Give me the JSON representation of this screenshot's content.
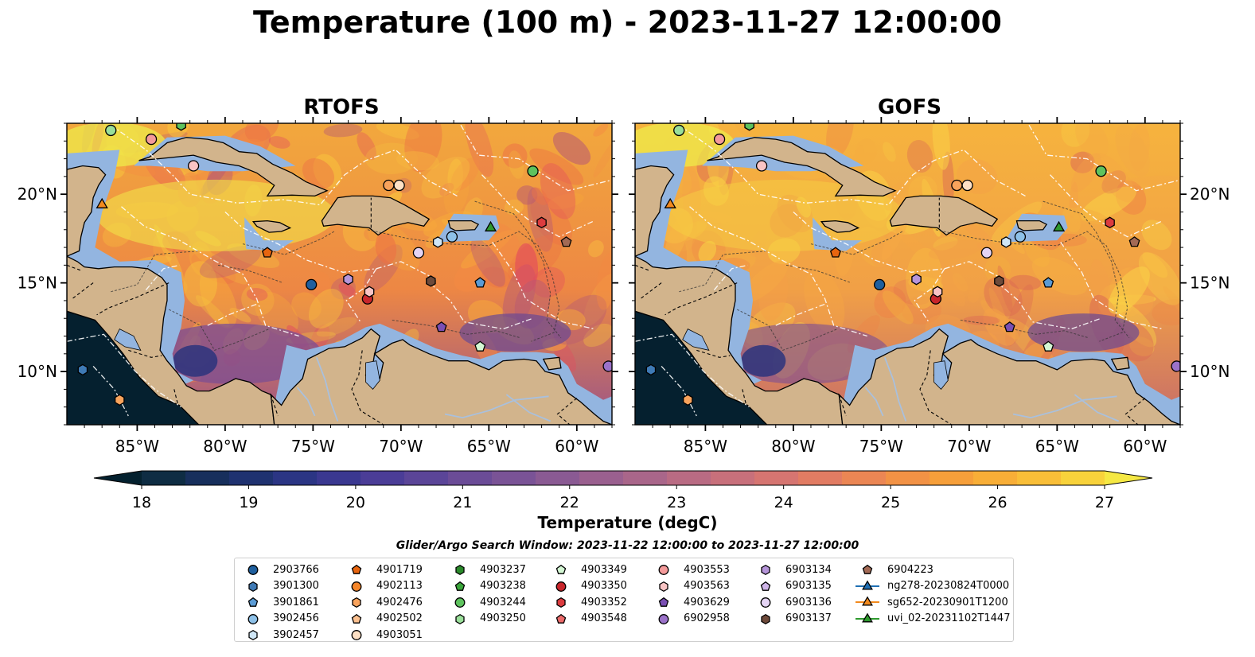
{
  "title": "Temperature (100 m) - 2023-11-27 12:00:00",
  "maps": [
    {
      "title": "RTOFS",
      "palette": [
        "#e24a5e",
        "#f48a43",
        "#f7a93a",
        "#ec7245",
        "#f9c93d",
        "#b85a72",
        "#f6b640"
      ]
    },
    {
      "title": "GOFS",
      "palette": [
        "#f4a047",
        "#f7b842",
        "#ee8446",
        "#f9d046",
        "#dc6b52",
        "#f5a844",
        "#f4ae40"
      ]
    }
  ],
  "axes": {
    "lon_ticks": [
      "85°W",
      "80°W",
      "75°W",
      "70°W",
      "65°W",
      "60°W"
    ],
    "lat_ticks": [
      "20°N",
      "15°N",
      "10°N"
    ],
    "lon_range": [
      -89.0,
      -58.0
    ],
    "lat_range": [
      7.0,
      24.0
    ]
  },
  "colorbar": {
    "label": "Temperature (degC)",
    "ticks": [
      "18",
      "19",
      "20",
      "21",
      "22",
      "23",
      "24",
      "25",
      "26",
      "27"
    ],
    "range": [
      17.5,
      27.5
    ],
    "extend": "both",
    "colors": [
      "#04212f",
      "#0e2c43",
      "#172f5c",
      "#1f3270",
      "#2b3584",
      "#3a3890",
      "#4b3d97",
      "#5b4598",
      "#6b4c97",
      "#7a5396",
      "#8a5a93",
      "#9a608f",
      "#a9668a",
      "#b96b83",
      "#c8707b",
      "#d67571",
      "#e27c63",
      "#eb8654",
      "#f29245",
      "#f69f3a",
      "#f8ae37",
      "#f9be38",
      "#f8d23b",
      "#f5e843"
    ]
  },
  "search_window": "Glider/Argo Search Window: 2023-11-22 12:00:00 to 2023-11-27 12:00:00",
  "legend": {
    "columns": [
      [
        {
          "label": "2903766",
          "marker": "circle",
          "color": "#1f5f9e"
        },
        {
          "label": "3901300",
          "marker": "hexagon",
          "color": "#3f7ab5"
        },
        {
          "label": "3901861",
          "marker": "pentagon",
          "color": "#5a9bd5"
        },
        {
          "label": "3902456",
          "marker": "circle",
          "color": "#8ec1e8"
        },
        {
          "label": "3902457",
          "marker": "hexagon",
          "color": "#cfe6f6"
        }
      ],
      [
        {
          "label": "4901719",
          "marker": "pentagon",
          "color": "#e8650f"
        },
        {
          "label": "4902113",
          "marker": "circle",
          "color": "#f5862a"
        },
        {
          "label": "4902476",
          "marker": "hexagon",
          "color": "#f9a35c"
        },
        {
          "label": "4902502",
          "marker": "pentagon",
          "color": "#fbc08f"
        },
        {
          "label": "4903051",
          "marker": "circle",
          "color": "#fde0c5"
        }
      ],
      [
        {
          "label": "4903237",
          "marker": "hexagon",
          "color": "#2a8a2a"
        },
        {
          "label": "4903238",
          "marker": "pentagon",
          "color": "#3aa53a"
        },
        {
          "label": "4903244",
          "marker": "circle",
          "color": "#5ec35e"
        },
        {
          "label": "4903250",
          "marker": "hexagon",
          "color": "#9adf9a"
        }
      ],
      [
        {
          "label": "4903349",
          "marker": "pentagon",
          "color": "#d4f7d4"
        },
        {
          "label": "4903350",
          "marker": "circle",
          "color": "#c8262b"
        },
        {
          "label": "4903352",
          "marker": "hexagon",
          "color": "#dc3c3f"
        },
        {
          "label": "4903548",
          "marker": "pentagon",
          "color": "#ec6a6a"
        }
      ],
      [
        {
          "label": "4903553",
          "marker": "circle",
          "color": "#f49a9a"
        },
        {
          "label": "4903563",
          "marker": "hexagon",
          "color": "#f9c4c4"
        },
        {
          "label": "4903629",
          "marker": "pentagon",
          "color": "#7a4fb3"
        },
        {
          "label": "6902958",
          "marker": "circle",
          "color": "#9b72c9"
        }
      ],
      [
        {
          "label": "6903134",
          "marker": "hexagon",
          "color": "#b695da"
        },
        {
          "label": "6903135",
          "marker": "pentagon",
          "color": "#cfb5e8"
        },
        {
          "label": "6903136",
          "marker": "circle",
          "color": "#e4d4f4"
        },
        {
          "label": "6903137",
          "marker": "hexagon",
          "color": "#6e4a3a"
        }
      ],
      [
        {
          "label": "6904223",
          "marker": "pentagon",
          "color": "#a36a55"
        },
        {
          "label": "ng278-20230824T0000",
          "marker": "triangle-line",
          "color": "#1f6fb4"
        },
        {
          "label": "sg652-20230901T1200",
          "marker": "triangle-line",
          "color": "#f28a1e"
        },
        {
          "label": "uvi_02-20231102T1447",
          "marker": "triangle-line",
          "color": "#2e9a2e"
        }
      ]
    ]
  },
  "markers": [
    {
      "lon": -86.5,
      "lat": 23.6,
      "marker": "circle",
      "color": "#9adf9a"
    },
    {
      "lon": -82.5,
      "lat": 23.9,
      "marker": "hexagon",
      "color": "#5ec35e"
    },
    {
      "lon": -84.2,
      "lat": 23.1,
      "marker": "circle",
      "color": "#f49a9a"
    },
    {
      "lon": -81.8,
      "lat": 21.6,
      "marker": "circle",
      "color": "#f9c4c4"
    },
    {
      "lon": -87.0,
      "lat": 19.4,
      "marker": "triangle",
      "color": "#f28a1e"
    },
    {
      "lon": -77.6,
      "lat": 16.7,
      "marker": "pentagon",
      "color": "#e8650f"
    },
    {
      "lon": -75.1,
      "lat": 14.9,
      "marker": "circle",
      "color": "#1f5f9e"
    },
    {
      "lon": -73.0,
      "lat": 15.2,
      "marker": "hexagon",
      "color": "#b695da"
    },
    {
      "lon": -71.9,
      "lat": 14.1,
      "marker": "circle",
      "color": "#c8262b"
    },
    {
      "lon": -71.8,
      "lat": 14.5,
      "marker": "hexagon",
      "color": "#f9c4c4"
    },
    {
      "lon": -70.7,
      "lat": 20.5,
      "marker": "circle",
      "color": "#f9a35c"
    },
    {
      "lon": -70.1,
      "lat": 20.5,
      "marker": "circle",
      "color": "#fde0c5"
    },
    {
      "lon": -69.0,
      "lat": 16.7,
      "marker": "circle",
      "color": "#e4d4f4"
    },
    {
      "lon": -68.3,
      "lat": 15.1,
      "marker": "hexagon",
      "color": "#6e4a3a"
    },
    {
      "lon": -67.9,
      "lat": 17.3,
      "marker": "hexagon",
      "color": "#cfe6f6"
    },
    {
      "lon": -67.1,
      "lat": 17.6,
      "marker": "circle",
      "color": "#8ec1e8"
    },
    {
      "lon": -67.7,
      "lat": 12.5,
      "marker": "pentagon",
      "color": "#7a4fb3"
    },
    {
      "lon": -65.5,
      "lat": 11.4,
      "marker": "pentagon",
      "color": "#d4f7d4"
    },
    {
      "lon": -65.5,
      "lat": 15.0,
      "marker": "pentagon",
      "color": "#5a9bd5"
    },
    {
      "lon": -64.9,
      "lat": 18.1,
      "marker": "triangle",
      "color": "#2e9a2e"
    },
    {
      "lon": -62.5,
      "lat": 21.3,
      "marker": "circle",
      "color": "#5ec35e"
    },
    {
      "lon": -62.0,
      "lat": 18.4,
      "marker": "hexagon",
      "color": "#dc3c3f"
    },
    {
      "lon": -60.6,
      "lat": 17.3,
      "marker": "pentagon",
      "color": "#a36a55"
    },
    {
      "lon": -58.2,
      "lat": 10.3,
      "marker": "circle",
      "color": "#9b72c9"
    },
    {
      "lon": -88.1,
      "lat": 10.1,
      "marker": "hexagon",
      "color": "#3f7ab5"
    },
    {
      "lon": -86.0,
      "lat": 8.4,
      "marker": "hexagon",
      "color": "#f9a35c"
    }
  ]
}
